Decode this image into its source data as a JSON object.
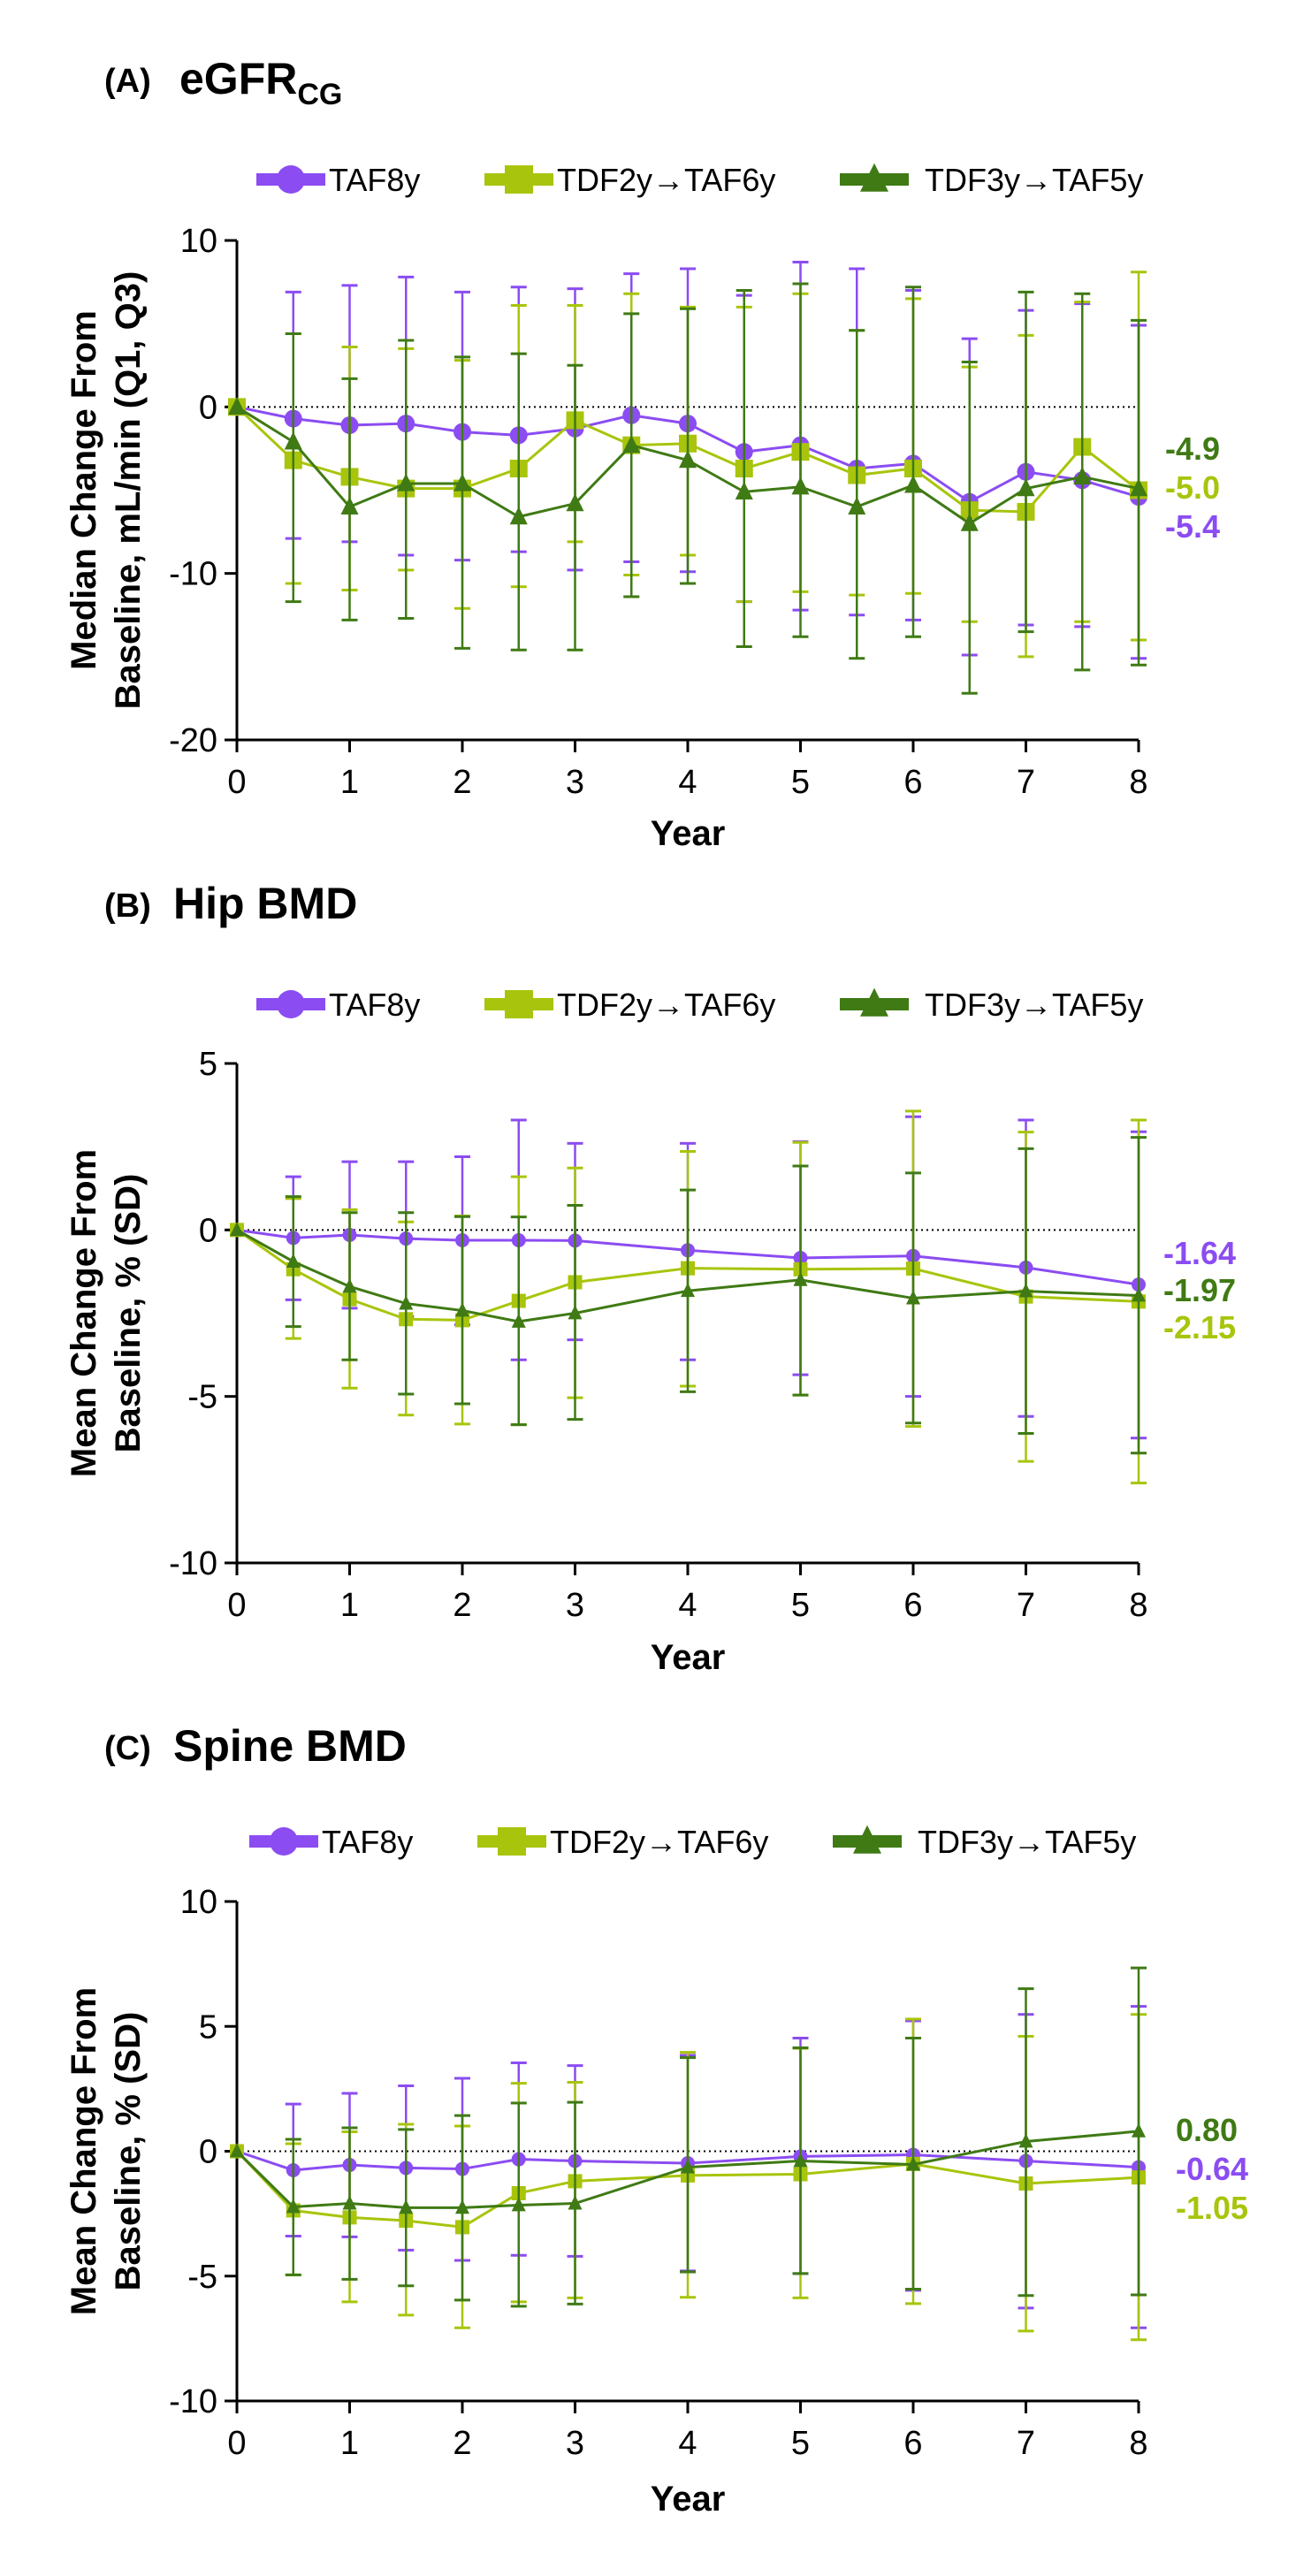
{
  "colors": {
    "TAF8y": "#8B4CF2",
    "TDF2y_TAF6y": "#A9C40C",
    "TDF3y_TAF5y": "#3F7A14",
    "axis": "#000000",
    "reference_line": "#000000"
  },
  "legend": {
    "entries": [
      {
        "key": "TAF8y",
        "label": "TAF8y",
        "marker": "circle"
      },
      {
        "key": "TDF2y_TAF6y",
        "label": "TDF2y→TAF6y",
        "marker": "square"
      },
      {
        "key": "TDF3y_TAF5y",
        "label": "TDF3y→TAF5y",
        "marker": "triangle"
      }
    ]
  },
  "chart_data": [
    {
      "type": "line",
      "panel_letter": "(A)",
      "title": "eGFR",
      "title_subscript": "CG",
      "xlabel": "Year",
      "ylabel_line1": "Median Change From",
      "ylabel_line2": "Baseline, mL/min (Q1, Q3)",
      "xlim": [
        0,
        8
      ],
      "ylim": [
        -20,
        10
      ],
      "xticks": [
        0,
        1,
        2,
        3,
        4,
        5,
        6,
        7,
        8
      ],
      "yticks": [
        10,
        0,
        -10,
        -20
      ],
      "reference_line_y": 0,
      "error_bar_type": "Q1, Q3",
      "x": [
        0,
        0.5,
        1,
        1.5,
        2,
        2.5,
        3,
        3.5,
        4,
        4.5,
        5,
        5.5,
        6,
        6.5,
        7,
        7.5,
        8
      ],
      "series": [
        {
          "key": "TAF8y",
          "name": "TAF8y",
          "values": [
            0,
            -0.7,
            -1.1,
            -1.0,
            -1.5,
            -1.7,
            -1.3,
            -0.5,
            -1.0,
            -2.7,
            -2.3,
            -3.7,
            -3.4,
            -5.7,
            -3.9,
            -4.4,
            -5.4
          ],
          "upper": [
            0,
            6.9,
            7.3,
            7.8,
            6.9,
            7.2,
            7.1,
            8.0,
            8.3,
            6.7,
            8.7,
            8.3,
            7.0,
            4.1,
            5.8,
            6.2,
            4.9
          ],
          "lower": [
            0,
            -7.9,
            -8.1,
            -8.9,
            -9.2,
            -8.7,
            -9.8,
            -9.3,
            -9.9,
            -11.7,
            -12.2,
            -12.5,
            -12.8,
            -14.9,
            -13.1,
            -13.2,
            -15.1
          ],
          "end_label": "-5.4"
        },
        {
          "key": "TDF2y_TAF6y",
          "name": "TDF2y→TAF6y",
          "values": [
            0,
            -3.2,
            -4.2,
            -4.9,
            -4.9,
            -3.7,
            -0.8,
            -2.3,
            -2.2,
            -3.7,
            -2.7,
            -4.1,
            -3.7,
            -6.2,
            -6.3,
            -2.4,
            -5.0
          ],
          "upper": [
            0,
            4.4,
            3.6,
            3.5,
            2.8,
            6.1,
            6.1,
            6.8,
            6.0,
            6.0,
            6.8,
            4.6,
            6.5,
            2.4,
            4.3,
            6.3,
            8.1
          ],
          "lower": [
            0,
            -10.6,
            -11.0,
            -9.8,
            -12.1,
            -10.8,
            -8.1,
            -10.1,
            -8.9,
            -11.7,
            -11.1,
            -11.3,
            -11.2,
            -12.9,
            -15.0,
            -12.9,
            -14.0
          ],
          "end_label": "-5.0"
        },
        {
          "key": "TDF3y_TAF5y",
          "name": "TDF3y→TAF5y",
          "values": [
            0,
            -2.1,
            -6.0,
            -4.6,
            -4.6,
            -6.6,
            -5.8,
            -2.3,
            -3.2,
            -5.1,
            -4.8,
            -6.0,
            -4.7,
            -7.0,
            -4.9,
            -4.2,
            -4.9
          ],
          "upper": [
            0,
            4.4,
            1.7,
            4.0,
            3.0,
            3.2,
            2.5,
            5.6,
            5.9,
            7.0,
            7.4,
            4.6,
            7.2,
            2.7,
            6.9,
            6.8,
            5.2
          ],
          "lower": [
            0,
            -11.7,
            -12.8,
            -12.7,
            -14.5,
            -14.6,
            -14.6,
            -11.4,
            -10.6,
            -14.4,
            -13.8,
            -15.1,
            -13.8,
            -17.2,
            -13.5,
            -15.8,
            -15.5
          ],
          "end_label": "-4.9"
        }
      ],
      "end_label_order": [
        "TDF3y_TAF5y",
        "TDF2y_TAF6y",
        "TAF8y"
      ]
    },
    {
      "type": "line",
      "panel_letter": "(B)",
      "title": "Hip BMD",
      "title_subscript": "",
      "xlabel": "Year",
      "ylabel_line1": "Mean Change From",
      "ylabel_line2": "Baseline, % (SD)",
      "xlim": [
        0,
        8
      ],
      "ylim": [
        -10,
        5
      ],
      "xticks": [
        0,
        1,
        2,
        3,
        4,
        5,
        6,
        7,
        8
      ],
      "yticks": [
        5,
        0,
        -5,
        -10
      ],
      "reference_line_y": 0,
      "error_bar_type": "SD",
      "x": [
        0,
        0.5,
        1,
        1.5,
        2,
        2.5,
        3,
        4,
        5,
        6,
        7,
        8
      ],
      "series": [
        {
          "key": "TAF8y",
          "name": "TAF8y",
          "values": [
            0,
            -0.24,
            -0.15,
            -0.26,
            -0.31,
            -0.31,
            -0.32,
            -0.61,
            -0.84,
            -0.78,
            -1.13,
            -1.64
          ],
          "upper": [
            0,
            1.6,
            2.05,
            2.05,
            2.2,
            3.3,
            2.6,
            2.6,
            2.65,
            3.4,
            3.3,
            2.95
          ],
          "lower": [
            0,
            -2.1,
            -2.35,
            -2.6,
            -2.85,
            -3.9,
            -3.3,
            -3.9,
            -4.35,
            -5.0,
            -5.6,
            -6.25
          ],
          "end_label": "-1.64"
        },
        {
          "key": "TDF2y_TAF6y",
          "name": "TDF2y→TAF6y",
          "values": [
            0,
            -1.18,
            -2.08,
            -2.68,
            -2.71,
            -2.13,
            -1.57,
            -1.15,
            -1.18,
            -1.16,
            -2.0,
            -2.15
          ],
          "upper": [
            0,
            0.94,
            0.61,
            0.24,
            0.42,
            1.6,
            1.86,
            2.36,
            2.63,
            3.57,
            2.94,
            3.3
          ],
          "lower": [
            0,
            -3.26,
            -4.75,
            -5.56,
            -5.83,
            -5.85,
            -5.04,
            -4.69,
            -4.96,
            -5.9,
            -6.95,
            -7.6
          ],
          "end_label": "-2.15"
        },
        {
          "key": "TDF3y_TAF5y",
          "name": "TDF3y→TAF5y",
          "values": [
            0,
            -0.95,
            -1.7,
            -2.21,
            -2.42,
            -2.75,
            -2.5,
            -1.83,
            -1.5,
            -2.05,
            -1.84,
            -1.97
          ],
          "upper": [
            0,
            1.0,
            0.52,
            0.52,
            0.4,
            0.39,
            0.74,
            1.2,
            1.92,
            1.71,
            2.44,
            2.78
          ],
          "lower": [
            0,
            -2.9,
            -3.9,
            -4.93,
            -5.22,
            -5.85,
            -5.69,
            -4.86,
            -4.96,
            -5.8,
            -6.11,
            -6.7
          ],
          "end_label": "-1.97"
        }
      ],
      "end_label_order": [
        "TAF8y",
        "TDF3y_TAF5y",
        "TDF2y_TAF6y"
      ]
    },
    {
      "type": "line",
      "panel_letter": "(C)",
      "title": "Spine BMD",
      "title_subscript": "",
      "xlabel": "Year",
      "ylabel_line1": "Mean Change From",
      "ylabel_line2": "Baseline, % (SD)",
      "xlim": [
        0,
        8
      ],
      "ylim": [
        -10,
        10
      ],
      "xticks": [
        0,
        1,
        2,
        3,
        4,
        5,
        6,
        7,
        8
      ],
      "yticks": [
        10,
        5,
        0,
        -5,
        -10
      ],
      "reference_line_y": 0,
      "error_bar_type": "SD",
      "x": [
        0,
        0.5,
        1,
        1.5,
        2,
        2.5,
        3,
        4,
        5,
        6,
        7,
        8
      ],
      "series": [
        {
          "key": "TAF8y",
          "name": "TAF8y",
          "values": [
            0,
            -0.76,
            -0.55,
            -0.67,
            -0.71,
            -0.32,
            -0.39,
            -0.48,
            -0.21,
            -0.14,
            -0.39,
            -0.64
          ],
          "upper": [
            0,
            1.89,
            2.32,
            2.62,
            2.92,
            3.54,
            3.43,
            3.84,
            4.53,
            5.22,
            5.48,
            5.8
          ],
          "lower": [
            0,
            -3.4,
            -3.43,
            -3.96,
            -4.37,
            -4.17,
            -4.21,
            -4.79,
            -4.9,
            -5.57,
            -6.28,
            -7.07
          ],
          "end_label": "-0.64"
        },
        {
          "key": "TDF2y_TAF6y",
          "name": "TDF2y→TAF6y",
          "values": [
            0,
            -2.37,
            -2.65,
            -2.78,
            -3.04,
            -1.68,
            -1.2,
            -0.97,
            -0.92,
            -0.51,
            -1.29,
            -1.05
          ],
          "upper": [
            0,
            0.3,
            0.78,
            1.08,
            1.01,
            2.72,
            2.76,
            3.96,
            4.12,
            5.29,
            4.6,
            5.48
          ],
          "lower": [
            0,
            -4.95,
            -6.03,
            -6.56,
            -7.07,
            -6.03,
            -5.87,
            -5.85,
            -5.87,
            -6.1,
            -7.2,
            -7.55
          ],
          "end_label": "-1.05"
        },
        {
          "key": "TDF3y_TAF5y",
          "name": "TDF3y→TAF5y",
          "values": [
            0,
            -2.23,
            -2.09,
            -2.26,
            -2.26,
            -2.16,
            -2.09,
            -0.64,
            -0.39,
            -0.53,
            0.39,
            0.8
          ],
          "upper": [
            0,
            0.48,
            0.94,
            0.87,
            1.43,
            1.93,
            1.96,
            3.75,
            4.14,
            4.53,
            6.51,
            7.34
          ],
          "lower": [
            0,
            -4.95,
            -5.13,
            -5.39,
            -5.96,
            -6.21,
            -6.12,
            -4.83,
            -4.9,
            -5.52,
            -5.78,
            -5.75
          ],
          "end_label": "0.80"
        }
      ],
      "end_label_order": [
        "TDF3y_TAF5y",
        "TAF8y",
        "TDF2y_TAF6y"
      ]
    }
  ]
}
